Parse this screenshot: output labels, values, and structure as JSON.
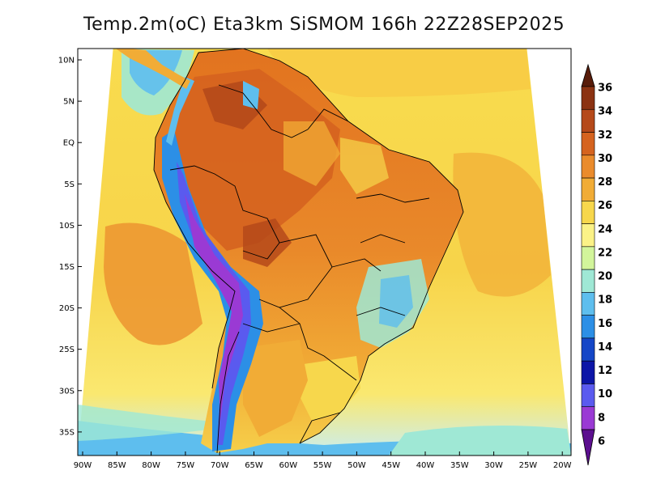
{
  "title": "Temp.2m(oC) Eta3km SiSMOM 166h 22Z28SEP2025",
  "map": {
    "lat_ticks": [
      "10N",
      "5N",
      "EQ",
      "5S",
      "10S",
      "15S",
      "20S",
      "25S",
      "30S",
      "35S"
    ],
    "lon_ticks": [
      "90W",
      "85W",
      "80W",
      "75W",
      "70W",
      "65W",
      "60W",
      "55W",
      "50W",
      "45W",
      "40W",
      "35W",
      "30W",
      "25W",
      "20W"
    ],
    "extent": {
      "lon_min": -91,
      "lon_max": -20,
      "lat_min": -38,
      "lat_max": 11
    },
    "region": "South America"
  },
  "colorbar": {
    "labels": [
      "36",
      "34",
      "32",
      "30",
      "28",
      "26",
      "24",
      "22",
      "20",
      "18",
      "16",
      "14",
      "12",
      "10",
      "8",
      "6"
    ],
    "colors": [
      "#581c0a",
      "#8b3212",
      "#b5491a",
      "#d5631f",
      "#ea8b2c",
      "#f1ac36",
      "#f7d74c",
      "#fbf287",
      "#d2f59b",
      "#9fe8d5",
      "#5ebeee",
      "#2c8fe6",
      "#1446c7",
      "#0c15a7",
      "#5a5aef",
      "#9a3ad4",
      "#5c0f8f"
    ]
  }
}
